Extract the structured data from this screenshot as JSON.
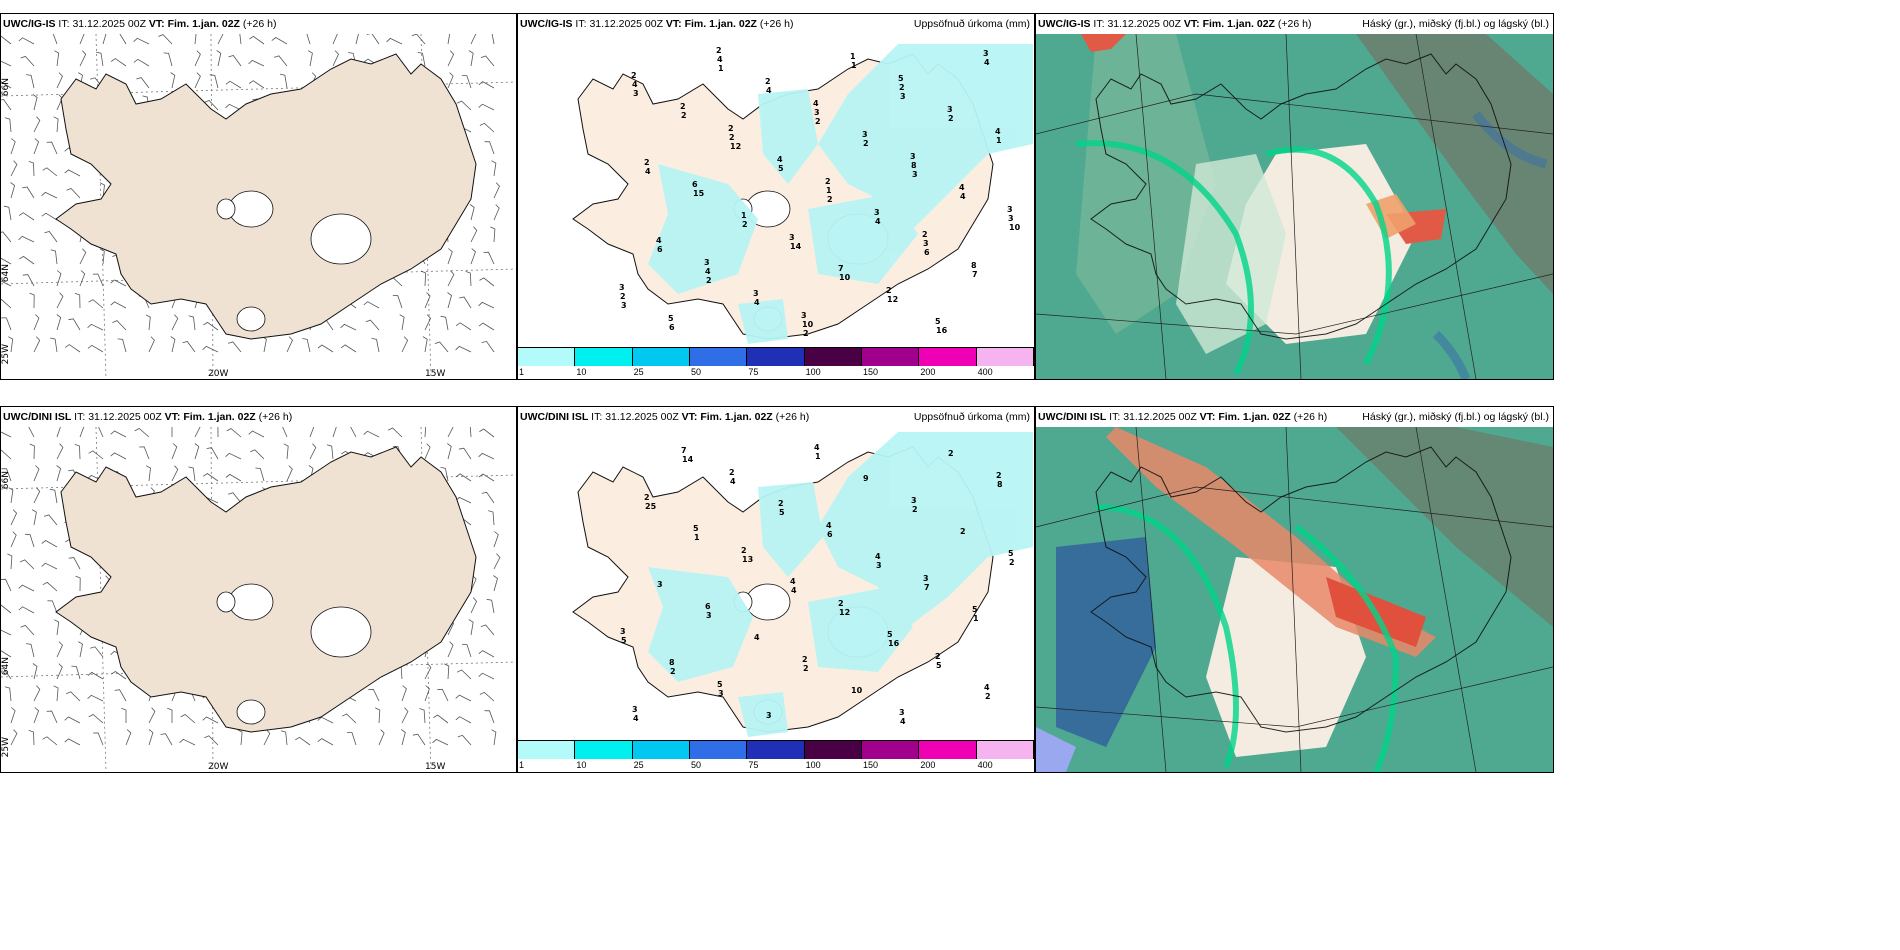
{
  "panels": {
    "p1": {
      "model": "UWC/IG-IS",
      "it": "31.12.2025 00Z",
      "vt": "Fim. 1.jan. 02Z",
      "lead": "(+26 h)",
      "right": ""
    },
    "p2": {
      "model": "UWC/IG-IS",
      "it": "31.12.2025 00Z",
      "vt": "Fim. 1.jan. 02Z",
      "lead": "(+26 h)",
      "right": "Uppsöfnuð úrkoma (mm)"
    },
    "p3": {
      "model": "UWC/IG-IS",
      "it": "31.12.2025 00Z",
      "vt": "Fim. 1.jan. 02Z",
      "lead": "(+26 h)",
      "right": "Háský (gr.), miðský (fj.bl.) og lágský (bl.)"
    },
    "p4": {
      "model": "UWC/DINI ISL",
      "it": "31.12.2025 00Z",
      "vt": "Fim. 1.jan. 02Z",
      "lead": "(+26 h)",
      "right": ""
    },
    "p5": {
      "model": "UWC/DINI ISL",
      "it": "31.12.2025 00Z",
      "vt": "Fim. 1.jan. 02Z",
      "lead": "(+26 h)",
      "right": "Uppsöfnuð úrkoma (mm)"
    },
    "p6": {
      "model": "UWC/DINI ISL",
      "it": "31.12.2025 00Z",
      "vt": "Fim. 1.jan. 02Z",
      "lead": "(+26 h)",
      "right": "Háský (gr.), miðský (fj.bl.) og lágský (bl.)"
    }
  },
  "labels": {
    "it": "IT:",
    "vt": "VT:"
  },
  "axes": {
    "lat66": "66N",
    "lat64": "64N",
    "lon25": "25W",
    "lon20": "20W",
    "lon15": "15W"
  },
  "colorbar": {
    "ticks": [
      "1",
      "10",
      "25",
      "50",
      "75",
      "100",
      "150",
      "200",
      "400"
    ],
    "colors": [
      "#b3fbfb",
      "#00f0f0",
      "#00c8f0",
      "#2f6ee6",
      "#1f2fb6",
      "#4a0045",
      "#a0008c",
      "#f000b4",
      "#f5b4f0"
    ]
  },
  "precip_top": [
    "2",
    "2",
    "2",
    "2",
    "3",
    "2",
    "4",
    "3",
    "3",
    "3",
    "3",
    "5",
    "4",
    "6",
    "3",
    "2",
    "3",
    "2",
    "4",
    "3",
    "8",
    "5",
    "2",
    "3",
    "4",
    "4",
    "3",
    "1",
    "3",
    "2",
    "1",
    "7",
    "5",
    "4",
    "2",
    "1",
    "3",
    "2",
    "4",
    "3",
    "8",
    "3",
    "4",
    "10",
    "2",
    "1",
    "15",
    "14",
    "12",
    "4",
    "2",
    "5",
    "4",
    "7",
    "6",
    "4",
    "2",
    "4",
    "6",
    "4",
    "1",
    "2",
    "4",
    "2",
    "10",
    "16",
    "3",
    "12",
    "2",
    "6",
    "3",
    "1",
    "2",
    "3",
    "10",
    "2",
    "2",
    "3"
  ],
  "precip_bottom": [
    "2",
    "2",
    "2",
    "2",
    "3",
    "2",
    "4",
    "3",
    "3",
    "5",
    "4",
    "3",
    "5",
    "6",
    "2",
    "3",
    "2",
    "5",
    "4",
    "5",
    "4",
    "7",
    "2",
    "4",
    "5",
    "8",
    "3",
    "9",
    "2",
    "3",
    "4",
    "10",
    "2",
    "25",
    "13",
    "12",
    "5",
    "4",
    "4",
    "6",
    "7",
    "5",
    "3",
    "1",
    "2",
    "2",
    "3",
    "2",
    "4",
    "8",
    "1",
    "4",
    "16",
    "2",
    "14",
    "5",
    "3",
    "1",
    "2"
  ]
}
